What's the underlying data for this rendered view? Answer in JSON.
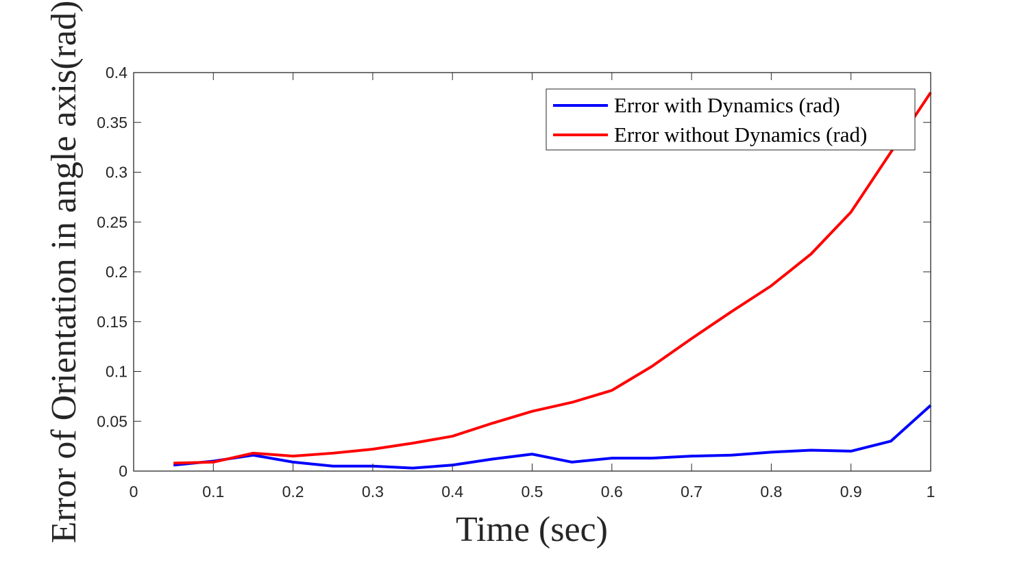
{
  "chart_data": {
    "type": "line",
    "title": "",
    "xlabel": "Time (sec)",
    "ylabel": "Error of Orientation in angle axis(rad)",
    "xlim": [
      0,
      1
    ],
    "ylim": [
      0,
      0.4
    ],
    "xticks": [
      0,
      0.1,
      0.2,
      0.3,
      0.4,
      0.5,
      0.6,
      0.7,
      0.8,
      0.9,
      1
    ],
    "xtick_labels": [
      "0",
      "0.1",
      "0.2",
      "0.3",
      "0.4",
      "0.5",
      "0.6",
      "0.7",
      "0.8",
      "0.9",
      "1"
    ],
    "yticks": [
      0,
      0.05,
      0.1,
      0.15,
      0.2,
      0.25,
      0.3,
      0.35,
      0.4
    ],
    "ytick_labels": [
      "0",
      "0.05",
      "0.1",
      "0.15",
      "0.2",
      "0.25",
      "0.3",
      "0.35",
      "0.4"
    ],
    "grid": false,
    "legend_position": "top-right",
    "x": [
      0.05,
      0.1,
      0.15,
      0.2,
      0.25,
      0.3,
      0.35,
      0.4,
      0.45,
      0.5,
      0.55,
      0.6,
      0.65,
      0.7,
      0.75,
      0.8,
      0.85,
      0.9,
      0.95,
      1.0
    ],
    "series": [
      {
        "name": "Error with Dynamics (rad)",
        "color": "#0000ff",
        "values": [
          0.006,
          0.01,
          0.016,
          0.009,
          0.005,
          0.005,
          0.003,
          0.006,
          0.012,
          0.017,
          0.009,
          0.013,
          0.013,
          0.015,
          0.016,
          0.019,
          0.021,
          0.02,
          0.03,
          0.066
        ]
      },
      {
        "name": "Error without Dynamics (rad)",
        "color": "#ff0000",
        "values": [
          0.008,
          0.009,
          0.018,
          0.015,
          0.018,
          0.022,
          0.028,
          0.035,
          0.048,
          0.06,
          0.069,
          0.081,
          0.105,
          0.133,
          0.16,
          0.186,
          0.218,
          0.26,
          0.32,
          0.38
        ]
      }
    ]
  }
}
